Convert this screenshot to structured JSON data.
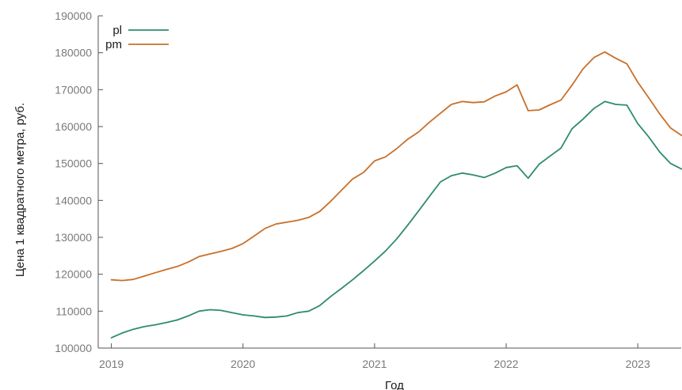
{
  "chart_data": {
    "type": "line",
    "title": "",
    "xlabel": "Год",
    "ylabel": "Цена 1 квадратного метра, руб.",
    "xlim": [
      2018.9,
      2023.33
    ],
    "ylim": [
      100000,
      190000
    ],
    "y_ticks": [
      100000,
      110000,
      120000,
      130000,
      140000,
      150000,
      160000,
      170000,
      180000,
      190000
    ],
    "y_tick_labels": [
      "100000",
      "110000",
      "120000",
      "130000",
      "140000",
      "150000",
      "160000",
      "170000",
      "180000",
      "190000"
    ],
    "x_ticks": [
      2019,
      2020,
      2021,
      2022,
      2023
    ],
    "x_tick_labels": [
      "2019",
      "2020",
      "2021",
      "2022",
      "2023"
    ],
    "legend_position": "top-left",
    "grid": false,
    "series": [
      {
        "name": "pl",
        "color": "#2e8b6e",
        "x": [
          2019.0,
          2019.083,
          2019.167,
          2019.25,
          2019.333,
          2019.417,
          2019.5,
          2019.583,
          2019.667,
          2019.75,
          2019.833,
          2019.917,
          2020.0,
          2020.083,
          2020.167,
          2020.25,
          2020.333,
          2020.417,
          2020.5,
          2020.583,
          2020.667,
          2020.75,
          2020.833,
          2020.917,
          2021.0,
          2021.083,
          2021.167,
          2021.25,
          2021.333,
          2021.417,
          2021.5,
          2021.583,
          2021.667,
          2021.75,
          2021.833,
          2021.917,
          2022.0,
          2022.083,
          2022.167,
          2022.25,
          2022.333,
          2022.417,
          2022.5,
          2022.583,
          2022.667,
          2022.75,
          2022.833,
          2022.917,
          2023.0,
          2023.083,
          2023.167,
          2023.25,
          2023.333
        ],
        "values": [
          102800,
          104100,
          105100,
          105800,
          106300,
          106900,
          107600,
          108700,
          110000,
          110400,
          110200,
          109600,
          109000,
          108700,
          108300,
          108400,
          108700,
          109600,
          110000,
          111500,
          114000,
          116200,
          118500,
          121000,
          123600,
          126300,
          129500,
          133200,
          137100,
          141100,
          145000,
          146700,
          147400,
          146900,
          146200,
          147400,
          148900,
          149400,
          146000,
          149800,
          152000,
          154200,
          159400,
          162000,
          164900,
          166800,
          166000,
          165800,
          160800,
          157200,
          153100,
          150000,
          148500
        ]
      },
      {
        "name": "pm",
        "color": "#c8702a",
        "x": [
          2019.0,
          2019.083,
          2019.167,
          2019.25,
          2019.333,
          2019.417,
          2019.5,
          2019.583,
          2019.667,
          2019.75,
          2019.833,
          2019.917,
          2020.0,
          2020.083,
          2020.167,
          2020.25,
          2020.333,
          2020.417,
          2020.5,
          2020.583,
          2020.667,
          2020.75,
          2020.833,
          2020.917,
          2021.0,
          2021.083,
          2021.167,
          2021.25,
          2021.333,
          2021.417,
          2021.5,
          2021.583,
          2021.667,
          2021.75,
          2021.833,
          2021.917,
          2022.0,
          2022.083,
          2022.167,
          2022.25,
          2022.333,
          2022.417,
          2022.5,
          2022.583,
          2022.667,
          2022.75,
          2022.833,
          2022.917,
          2023.0,
          2023.083,
          2023.167,
          2023.25,
          2023.333
        ],
        "values": [
          118500,
          118300,
          118600,
          119500,
          120400,
          121300,
          122100,
          123300,
          124800,
          125500,
          126200,
          127000,
          128300,
          130300,
          132400,
          133600,
          134100,
          134600,
          135400,
          137000,
          139800,
          142800,
          145800,
          147600,
          150700,
          151800,
          154000,
          156500,
          158500,
          161200,
          163600,
          166000,
          166800,
          166500,
          166700,
          168300,
          169400,
          171300,
          164300,
          164500,
          165900,
          167200,
          171200,
          175600,
          178700,
          180200,
          178500,
          177000,
          172000,
          167800,
          163400,
          159600,
          157600
        ]
      }
    ]
  }
}
